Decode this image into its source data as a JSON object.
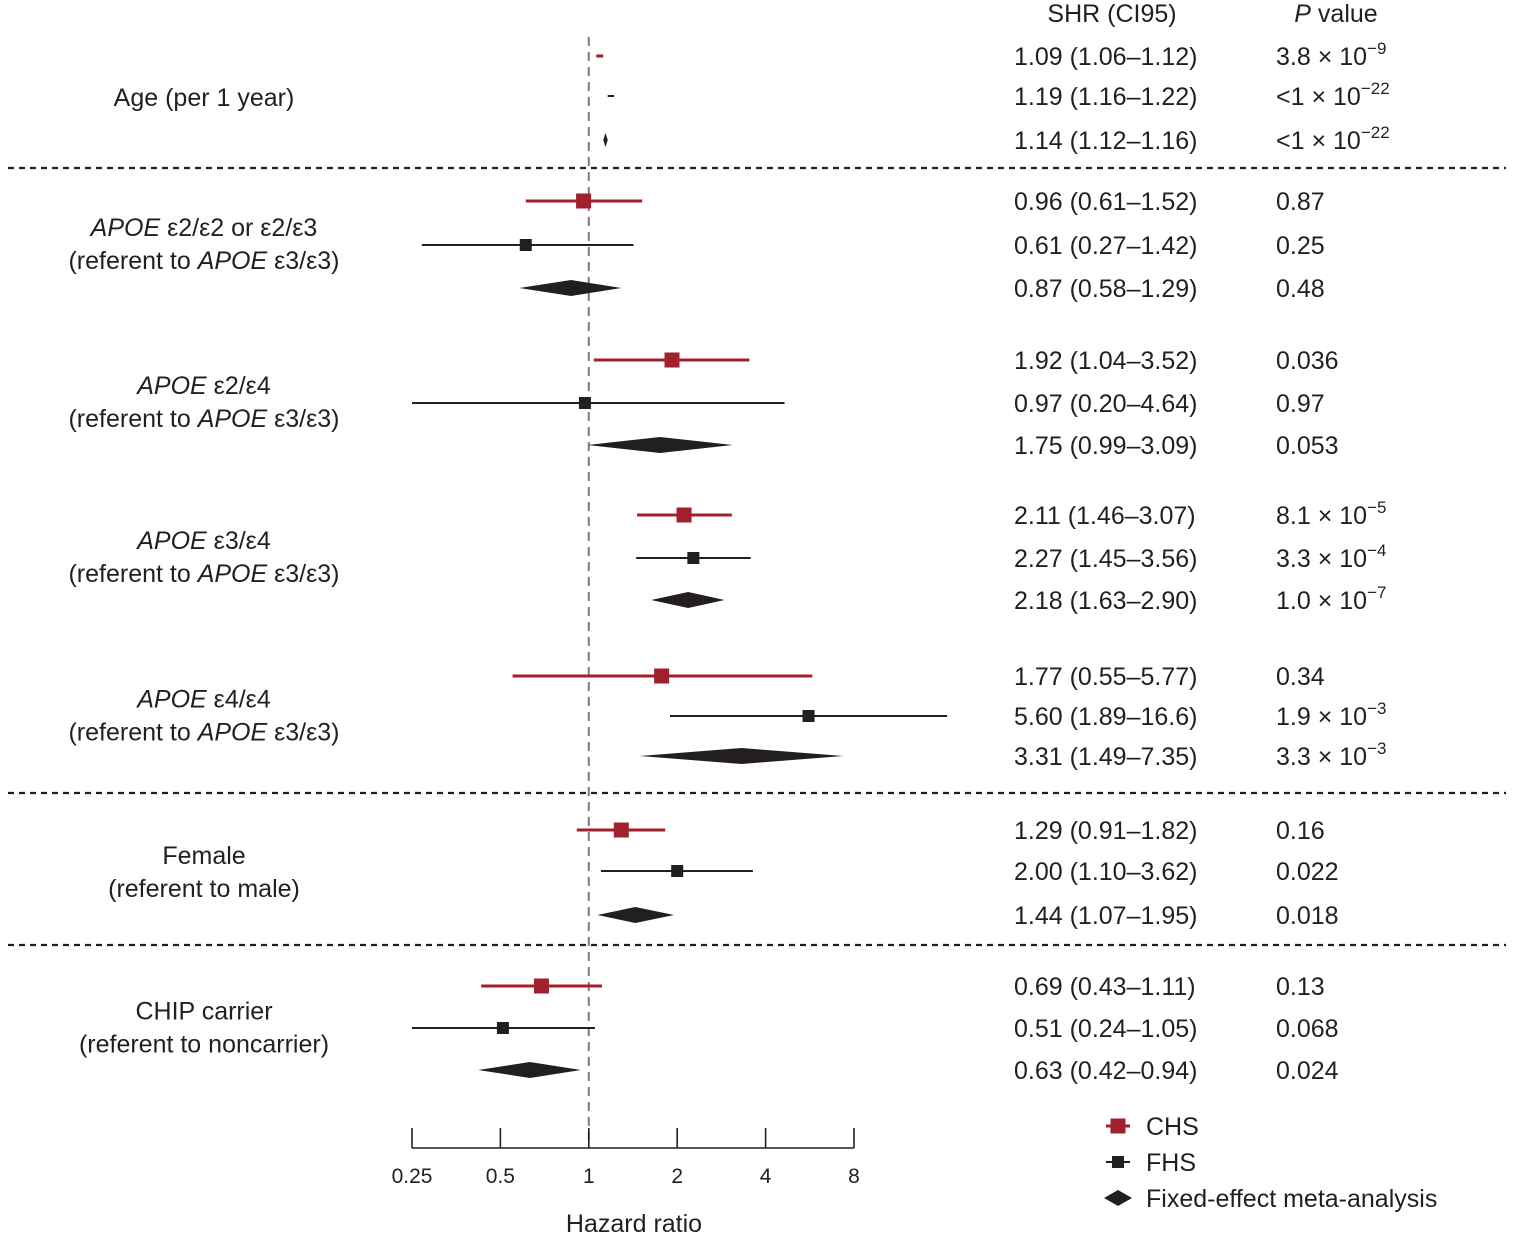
{
  "chart_data": {
    "type": "forest",
    "xlabel": "Hazard ratio",
    "xscale": "log2",
    "xlim": [
      0.25,
      8
    ],
    "reference_line": 1,
    "xticks": [
      {
        "value": 0.25,
        "label": "0.25"
      },
      {
        "value": 0.5,
        "label": "0.5"
      },
      {
        "value": 1,
        "label": "1"
      },
      {
        "value": 2,
        "label": "2"
      },
      {
        "value": 4,
        "label": "4"
      },
      {
        "value": 8,
        "label": "8"
      }
    ],
    "columns": {
      "shr": "SHR (CI95)",
      "p_italic": "P",
      "p_rest": " value"
    },
    "legend": [
      {
        "key": "CHS",
        "label": "CHS",
        "color": "#a0212c",
        "marker": "square"
      },
      {
        "key": "FHS",
        "label": "FHS",
        "color": "#231f20",
        "marker": "square"
      },
      {
        "key": "META",
        "label": "Fixed-effect meta-analysis",
        "color": "#231f20",
        "marker": "diamond"
      }
    ],
    "groups": [
      {
        "label_lines": [
          [
            {
              "t": "Age (per 1 year)",
              "i": false
            }
          ]
        ],
        "rows": [
          {
            "series": "CHS",
            "hr": 1.09,
            "lo": 1.06,
            "hi": 1.12,
            "shr_text": "1.09 (1.06–1.12)",
            "p_base": "3.8 × 10",
            "p_exp": "−9"
          },
          {
            "series": "FHS",
            "hr": 1.19,
            "lo": 1.16,
            "hi": 1.22,
            "shr_text": "1.19 (1.16–1.22)",
            "p_base": "<1 × 10",
            "p_exp": "−22"
          },
          {
            "series": "META",
            "hr": 1.14,
            "lo": 1.12,
            "hi": 1.16,
            "shr_text": "1.14 (1.12–1.16)",
            "p_base": "<1 × 10",
            "p_exp": "−22"
          }
        ]
      },
      {
        "label_lines": [
          [
            {
              "t": "APOE",
              "i": true
            },
            {
              "t": " ε2/ε2 or ε2/ε3",
              "i": false
            }
          ],
          [
            {
              "t": "(referent to ",
              "i": false
            },
            {
              "t": "APOE",
              "i": true
            },
            {
              "t": " ε3/ε3)",
              "i": false
            }
          ]
        ],
        "rows": [
          {
            "series": "CHS",
            "hr": 0.96,
            "lo": 0.61,
            "hi": 1.52,
            "shr_text": "0.96 (0.61–1.52)",
            "p_base": "0.87",
            "p_exp": ""
          },
          {
            "series": "FHS",
            "hr": 0.61,
            "lo": 0.27,
            "hi": 1.42,
            "shr_text": "0.61 (0.27–1.42)",
            "p_base": "0.25",
            "p_exp": ""
          },
          {
            "series": "META",
            "hr": 0.87,
            "lo": 0.58,
            "hi": 1.29,
            "shr_text": "0.87 (0.58–1.29)",
            "p_base": "0.48",
            "p_exp": ""
          }
        ]
      },
      {
        "label_lines": [
          [
            {
              "t": "APOE",
              "i": true
            },
            {
              "t": " ε2/ε4",
              "i": false
            }
          ],
          [
            {
              "t": "(referent to ",
              "i": false
            },
            {
              "t": "APOE",
              "i": true
            },
            {
              "t": " ε3/ε3)",
              "i": false
            }
          ]
        ],
        "rows": [
          {
            "series": "CHS",
            "hr": 1.92,
            "lo": 1.04,
            "hi": 3.52,
            "shr_text": "1.92 (1.04–3.52)",
            "p_base": "0.036",
            "p_exp": ""
          },
          {
            "series": "FHS",
            "hr": 0.97,
            "lo": 0.2,
            "hi": 4.64,
            "shr_text": "0.97 (0.20–4.64)",
            "p_base": "0.97",
            "p_exp": ""
          },
          {
            "series": "META",
            "hr": 1.75,
            "lo": 0.99,
            "hi": 3.09,
            "shr_text": "1.75 (0.99–3.09)",
            "p_base": "0.053",
            "p_exp": ""
          }
        ]
      },
      {
        "label_lines": [
          [
            {
              "t": "APOE",
              "i": true
            },
            {
              "t": " ε3/ε4",
              "i": false
            }
          ],
          [
            {
              "t": "(referent to ",
              "i": false
            },
            {
              "t": "APOE",
              "i": true
            },
            {
              "t": " ε3/ε3)",
              "i": false
            }
          ]
        ],
        "rows": [
          {
            "series": "CHS",
            "hr": 2.11,
            "lo": 1.46,
            "hi": 3.07,
            "shr_text": "2.11 (1.46–3.07)",
            "p_base": "8.1 × 10",
            "p_exp": "−5"
          },
          {
            "series": "FHS",
            "hr": 2.27,
            "lo": 1.45,
            "hi": 3.56,
            "shr_text": "2.27 (1.45–3.56)",
            "p_base": "3.3 × 10",
            "p_exp": "−4"
          },
          {
            "series": "META",
            "hr": 2.18,
            "lo": 1.63,
            "hi": 2.9,
            "shr_text": "2.18 (1.63–2.90)",
            "p_base": "1.0 × 10",
            "p_exp": "−7"
          }
        ]
      },
      {
        "label_lines": [
          [
            {
              "t": "APOE",
              "i": true
            },
            {
              "t": " ε4/ε4",
              "i": false
            }
          ],
          [
            {
              "t": "(referent to ",
              "i": false
            },
            {
              "t": "APOE",
              "i": true
            },
            {
              "t": " ε3/ε3)",
              "i": false
            }
          ]
        ],
        "rows": [
          {
            "series": "CHS",
            "hr": 1.77,
            "lo": 0.55,
            "hi": 5.77,
            "shr_text": "1.77 (0.55–5.77)",
            "p_base": "0.34",
            "p_exp": ""
          },
          {
            "series": "FHS",
            "hr": 5.6,
            "lo": 1.89,
            "hi": 16.6,
            "shr_text": "5.60 (1.89–16.6)",
            "p_base": "1.9 × 10",
            "p_exp": "−3"
          },
          {
            "series": "META",
            "hr": 3.31,
            "lo": 1.49,
            "hi": 7.35,
            "shr_text": "3.31 (1.49–7.35)",
            "p_base": "3.3 × 10",
            "p_exp": "−3"
          }
        ]
      },
      {
        "label_lines": [
          [
            {
              "t": "Female",
              "i": false
            }
          ],
          [
            {
              "t": "(referent to male)",
              "i": false
            }
          ]
        ],
        "rows": [
          {
            "series": "CHS",
            "hr": 1.29,
            "lo": 0.91,
            "hi": 1.82,
            "shr_text": "1.29 (0.91–1.82)",
            "p_base": "0.16",
            "p_exp": ""
          },
          {
            "series": "FHS",
            "hr": 2.0,
            "lo": 1.1,
            "hi": 3.62,
            "shr_text": "2.00 (1.10–3.62)",
            "p_base": "0.022",
            "p_exp": ""
          },
          {
            "series": "META",
            "hr": 1.44,
            "lo": 1.07,
            "hi": 1.95,
            "shr_text": "1.44 (1.07–1.95)",
            "p_base": "0.018",
            "p_exp": ""
          }
        ]
      },
      {
        "label_lines": [
          [
            {
              "t": "CHIP carrier",
              "i": false
            }
          ],
          [
            {
              "t": "(referent to noncarrier)",
              "i": false
            }
          ]
        ],
        "rows": [
          {
            "series": "CHS",
            "hr": 0.69,
            "lo": 0.43,
            "hi": 1.11,
            "shr_text": "0.69 (0.43–1.11)",
            "p_base": "0.13",
            "p_exp": ""
          },
          {
            "series": "FHS",
            "hr": 0.51,
            "lo": 0.24,
            "hi": 1.05,
            "shr_text": "0.51 (0.24–1.05)",
            "p_base": "0.068",
            "p_exp": ""
          },
          {
            "series": "META",
            "hr": 0.63,
            "lo": 0.42,
            "hi": 0.94,
            "shr_text": "0.63 (0.42–0.94)",
            "p_base": "0.024",
            "p_exp": ""
          }
        ]
      }
    ]
  }
}
